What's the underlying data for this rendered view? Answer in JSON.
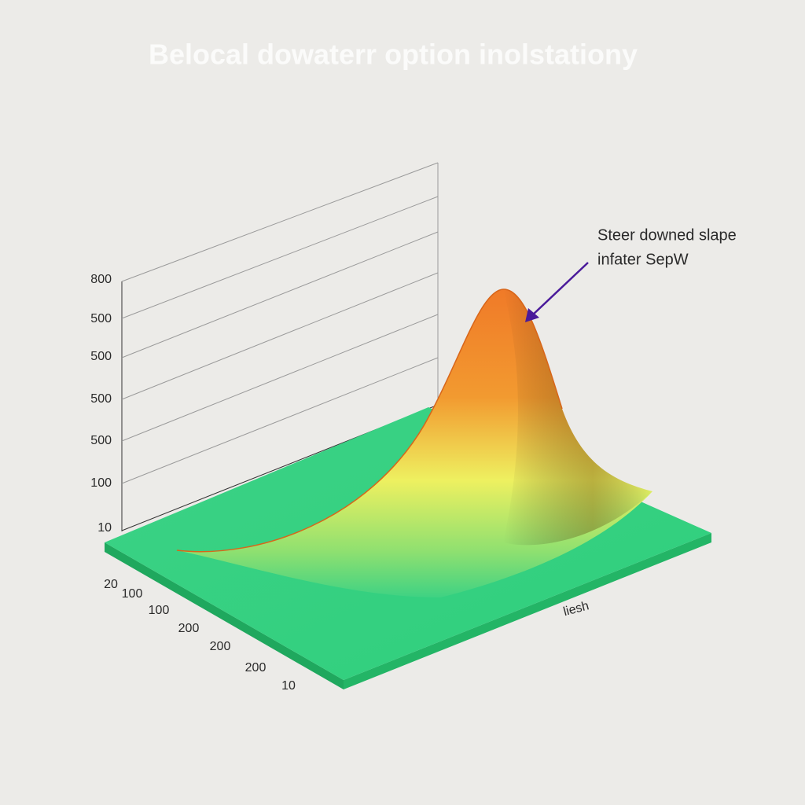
{
  "title": "Belocal dowaterr option inolstationy",
  "y_axis_labels": [
    "800",
    "500",
    "500",
    "500",
    "500",
    "100",
    "10"
  ],
  "x_axis_labels": [
    "20",
    "100",
    "100",
    "200",
    "200",
    "200",
    "10"
  ],
  "side_axis_label": "liesh",
  "annotation": [
    "Steer downed slape",
    "infater SepW"
  ]
}
